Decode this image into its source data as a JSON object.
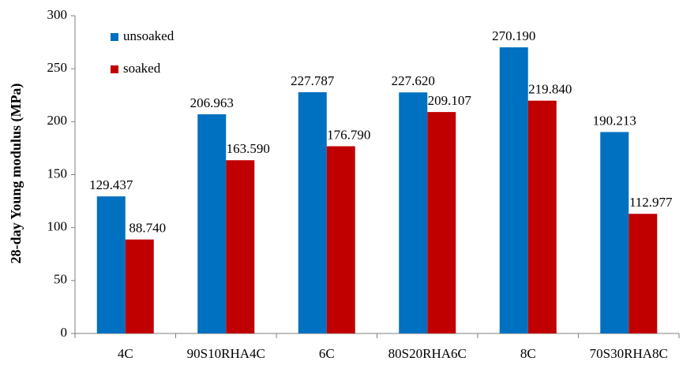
{
  "chart_data": {
    "type": "bar",
    "y_label": "28-day Young modulus (MPa)",
    "categories": [
      "4C",
      "90S10RHA4C",
      "6C",
      "80S20RHA6C",
      "8C",
      "70S30RHA8C"
    ],
    "series": [
      {
        "name": "unsoaked",
        "color": "#0070c0",
        "values": [
          129.437,
          206.963,
          227.787,
          227.62,
          270.19,
          190.213
        ],
        "value_labels": [
          "129.437",
          "206.963",
          "227.787",
          "227.620",
          "270.190",
          "190.213"
        ]
      },
      {
        "name": "soaked",
        "color": "#c00000",
        "values": [
          88.74,
          163.59,
          176.79,
          209.107,
          219.84,
          112.977
        ],
        "value_labels": [
          "88.740",
          "163.590",
          "176.790",
          "209.107",
          "219.840",
          "112.977"
        ]
      }
    ],
    "ylim": [
      0,
      300
    ],
    "yticks": [
      0,
      50,
      100,
      150,
      200,
      250,
      300
    ],
    "grid": false,
    "legend": "upper left"
  }
}
